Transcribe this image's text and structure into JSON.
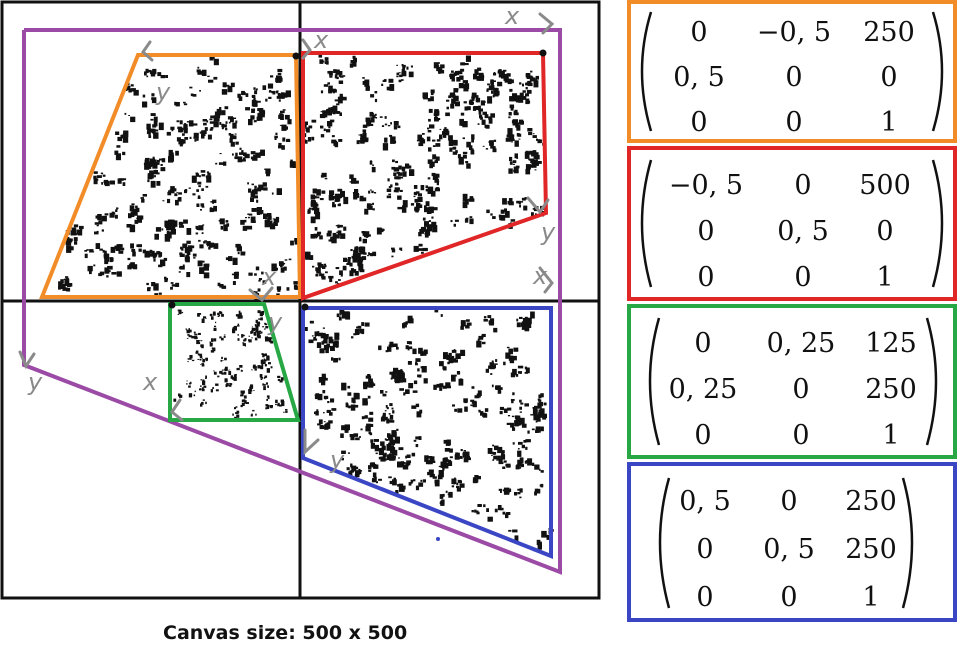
{
  "colors": {
    "orange": "#f28c28",
    "red": "#e02626",
    "green": "#27a844",
    "blue": "#3b46c4",
    "purple": "#9b4aa6",
    "axis": "#111111",
    "hand": "#8a8a8a"
  },
  "caption": "Canvas size: 500 x 500",
  "hand_labels": {
    "x": "x",
    "y": "y"
  },
  "matrices": [
    {
      "name": "orange",
      "rows": [
        [
          "0",
          "−0, 5",
          "250"
        ],
        [
          "0, 5",
          "0",
          "0"
        ],
        [
          "0",
          "0",
          "1"
        ]
      ]
    },
    {
      "name": "red",
      "rows": [
        [
          "−0, 5",
          "0",
          "500"
        ],
        [
          "0",
          "0, 5",
          "0"
        ],
        [
          "0",
          "0",
          "1"
        ]
      ]
    },
    {
      "name": "green",
      "rows": [
        [
          "0",
          "0, 25",
          "125"
        ],
        [
          "0, 25",
          "0",
          "250"
        ],
        [
          "0",
          "0",
          "1"
        ]
      ]
    },
    {
      "name": "blue",
      "rows": [
        [
          "0, 5",
          "0",
          "250"
        ],
        [
          "0",
          "0, 5",
          "250"
        ],
        [
          "0",
          "0",
          "1"
        ]
      ]
    }
  ]
}
